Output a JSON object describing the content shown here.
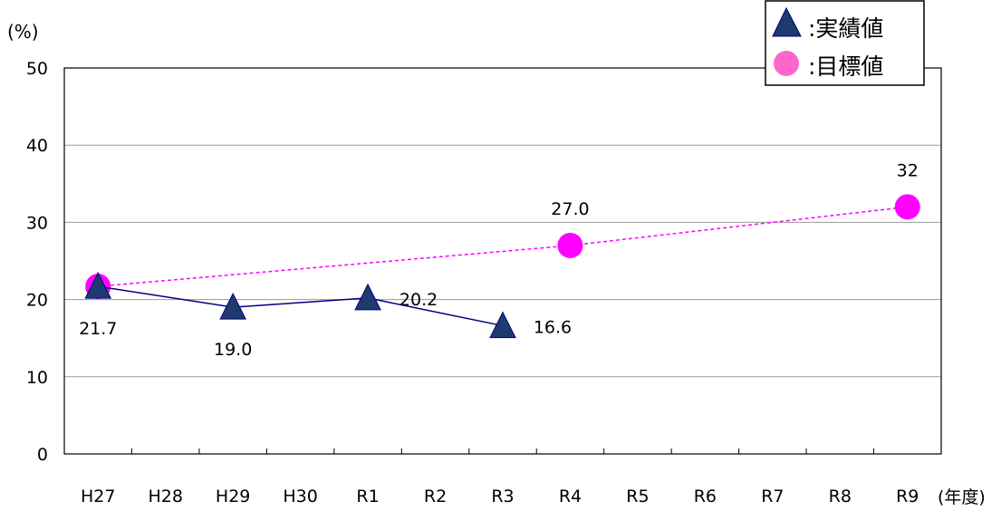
{
  "chart_data": {
    "type": "line",
    "ylabel": "(%)",
    "xlabel": "(年度)",
    "ylim": [
      0,
      50
    ],
    "yticks": [
      0,
      10,
      20,
      30,
      40,
      50
    ],
    "categories": [
      "H27",
      "H28",
      "H29",
      "H30",
      "R1",
      "R2",
      "R3",
      "R4",
      "R5",
      "R6",
      "R7",
      "R8",
      "R9"
    ],
    "grid": true,
    "legend_position": "top-right",
    "series": [
      {
        "name": "実績値",
        "marker": "triangle",
        "color": "#1f3a6e",
        "line_style": "solid",
        "points": [
          {
            "x": "H27",
            "y": 21.7,
            "label": "21.7"
          },
          {
            "x": "H29",
            "y": 19.0,
            "label": "19.0"
          },
          {
            "x": "R1",
            "y": 20.2,
            "label": "20.2"
          },
          {
            "x": "R3",
            "y": 16.6,
            "label": "16.6"
          }
        ]
      },
      {
        "name": "目標値",
        "marker": "circle",
        "color": "#ff00ff",
        "line_style": "dashed",
        "points": [
          {
            "x": "H27",
            "y": 21.7,
            "label": ""
          },
          {
            "x": "R4",
            "y": 27.0,
            "label": "27.0"
          },
          {
            "x": "R9",
            "y": 32,
            "label": "32"
          }
        ]
      }
    ],
    "legend": [
      {
        "label": ":実績値",
        "marker": "triangle"
      },
      {
        "label": ":目標値",
        "marker": "circle"
      }
    ]
  }
}
